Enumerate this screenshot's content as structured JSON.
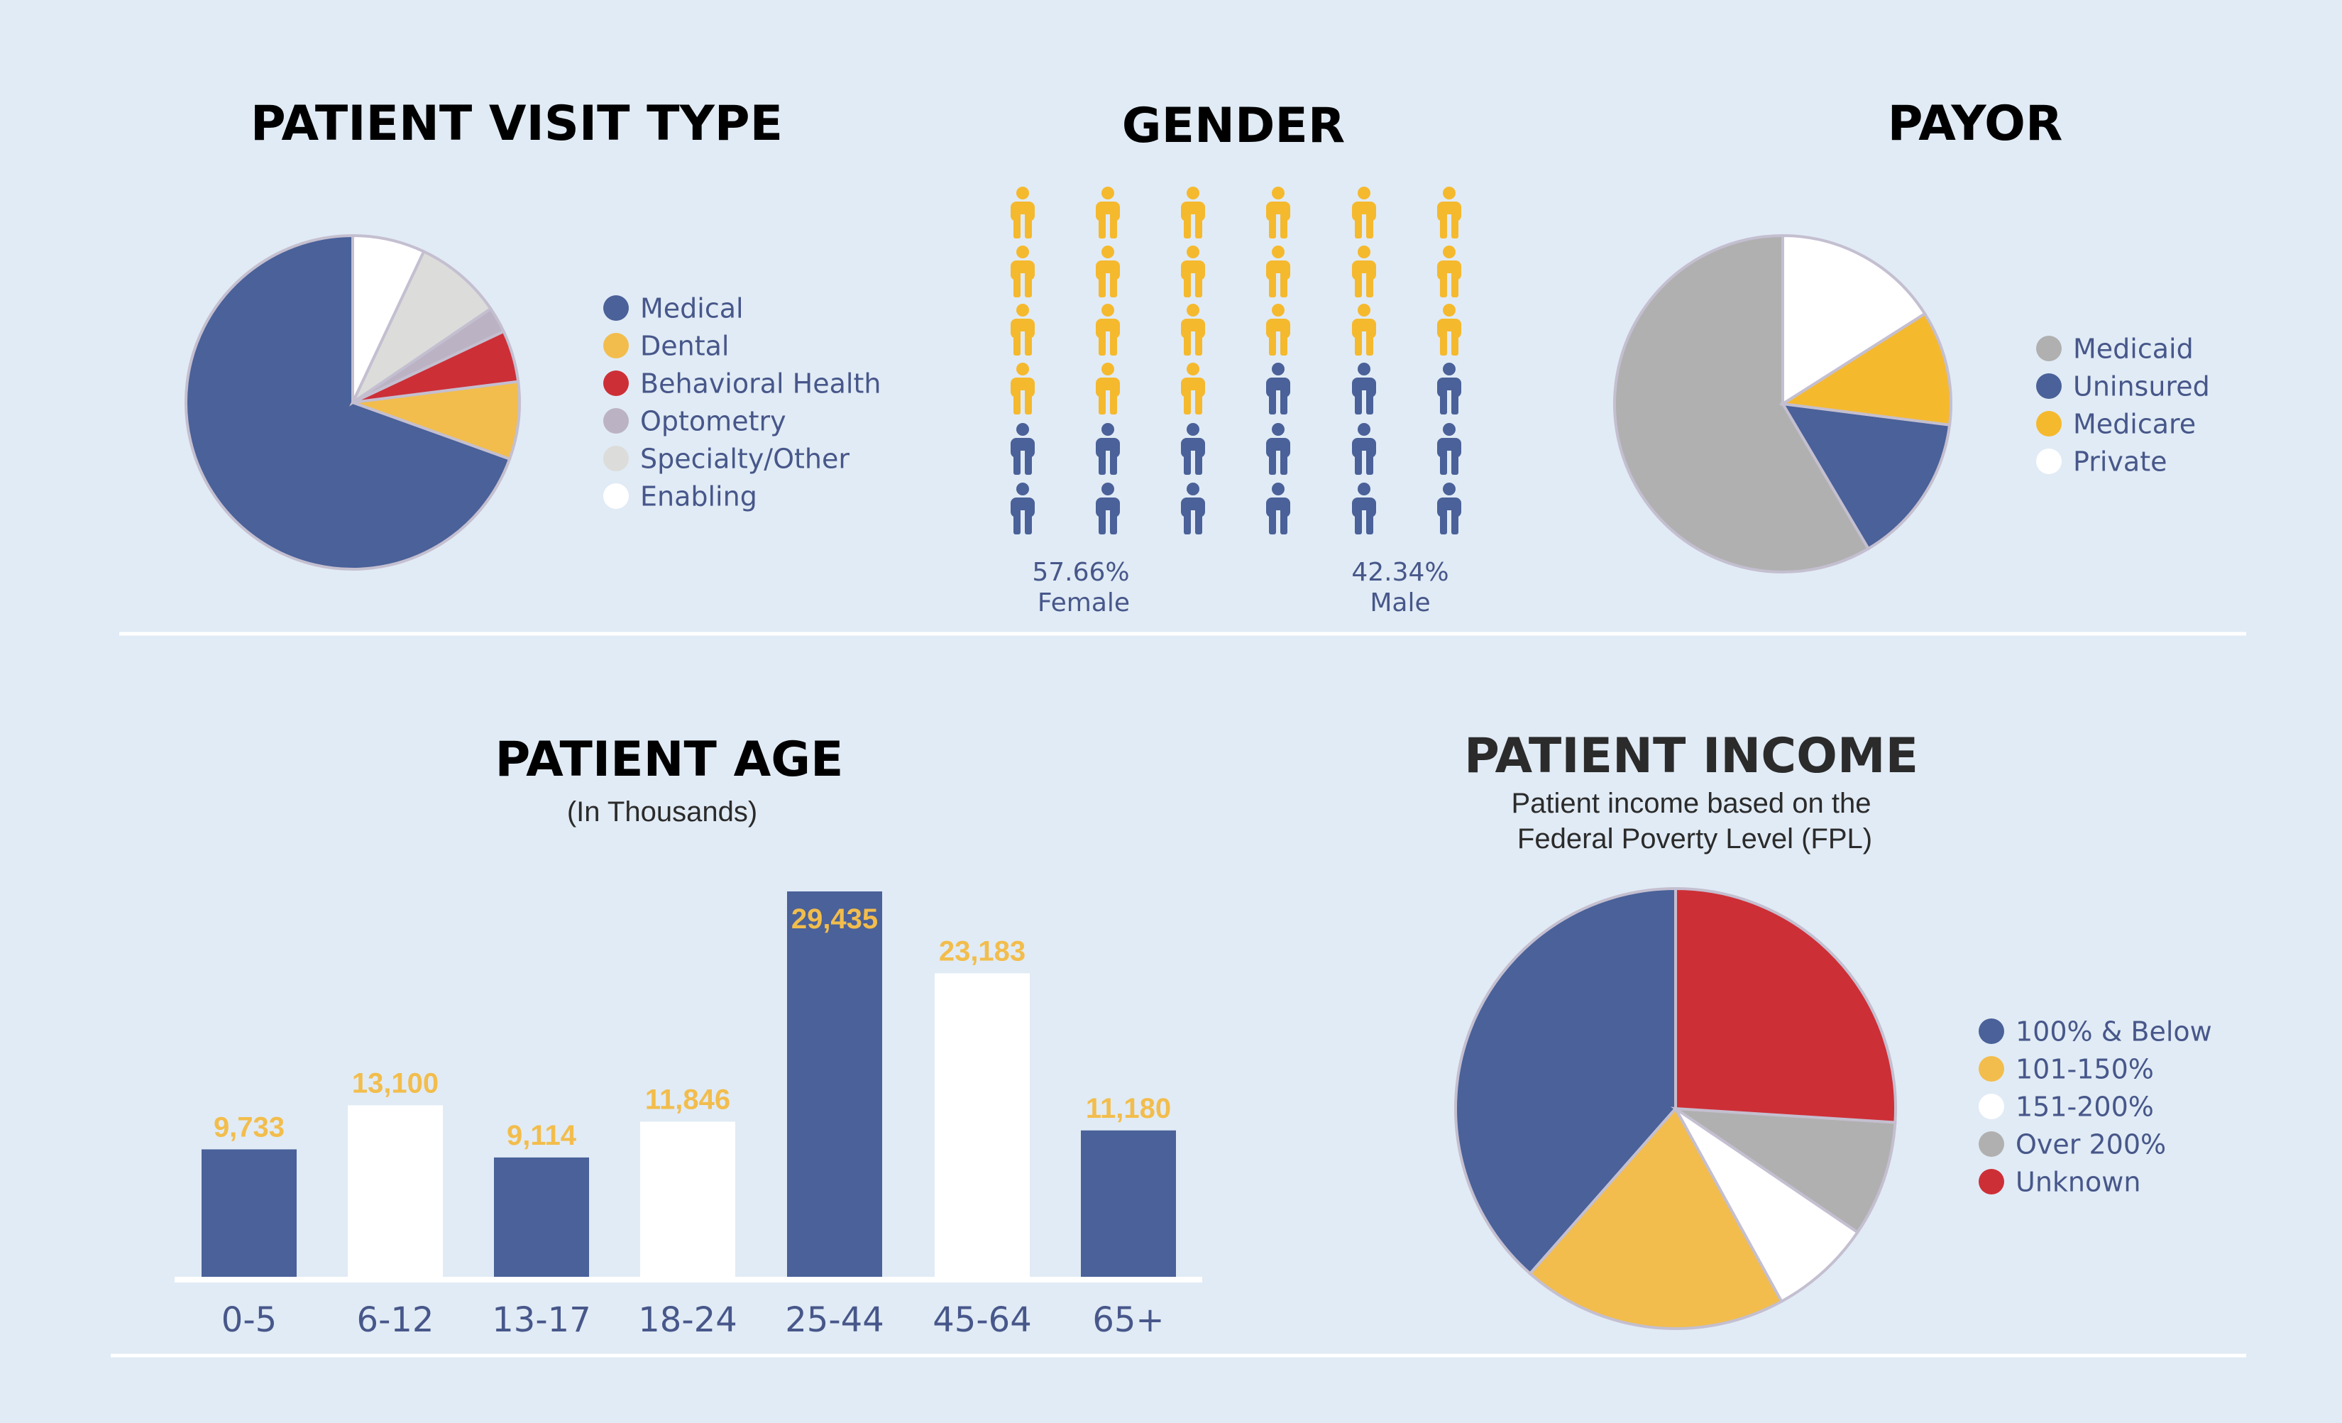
{
  "colors": {
    "background": "#e1ebf5",
    "blue": "#4a6199",
    "yellow": "#f2bd4c",
    "yellow_bright": "#f5b92e",
    "red": "#cd2f37",
    "mauve": "#bbb3c3",
    "light_gray": "#dcdcda",
    "gray": "#b0b0b0",
    "white": "#ffffff",
    "divider": "#ffffff"
  },
  "visit_type": {
    "title": "PATIENT VISIT TYPE"
  },
  "gender": {
    "title": "GENDER",
    "female_pct": "57.66%",
    "female_label": "Female",
    "male_pct": "42.34%",
    "male_label": "Male",
    "icon_grid": {
      "columns": 6,
      "rows": 6,
      "female_icons": 21,
      "male_icons": 15
    }
  },
  "payor": {
    "title": "PAYOR"
  },
  "age": {
    "title": "PATIENT AGE",
    "subtitle": "(In Thousands)"
  },
  "income": {
    "title": "PATIENT INCOME",
    "subtitle_line1": "Patient income based on the",
    "subtitle_line2": "Federal Poverty Level (FPL)"
  },
  "chart_data": [
    {
      "id": "visit_type",
      "type": "pie",
      "title": "PATIENT VISIT TYPE",
      "start_angle_deg": 0,
      "slices": [
        {
          "label": "Medical",
          "value": 69.5,
          "color": "#4a6199"
        },
        {
          "label": "Dental",
          "value": 7.5,
          "color": "#f2bd4c"
        },
        {
          "label": "Behavioral Health",
          "value": 5.0,
          "color": "#cd2f37"
        },
        {
          "label": "Optometry",
          "value": 2.5,
          "color": "#bbb3c3"
        },
        {
          "label": "Specialty/Other",
          "value": 8.5,
          "color": "#dcdcda"
        },
        {
          "label": "Enabling",
          "value": 7.0,
          "color": "#ffffff"
        }
      ]
    },
    {
      "id": "gender",
      "type": "pictograph",
      "title": "GENDER",
      "categories": [
        "Female",
        "Male"
      ],
      "values": [
        57.66,
        42.34
      ],
      "colors": [
        "#f5b92e",
        "#4a6199"
      ]
    },
    {
      "id": "payor",
      "type": "pie",
      "title": "PAYOR",
      "start_angle_deg": 0,
      "slices": [
        {
          "label": "Medicaid",
          "value": 58.5,
          "color": "#b0b0b0"
        },
        {
          "label": "Uninsured",
          "value": 14.5,
          "color": "#4a6199"
        },
        {
          "label": "Medicare",
          "value": 11.0,
          "color": "#f5b92e"
        },
        {
          "label": "Private",
          "value": 16.0,
          "color": "#ffffff"
        }
      ]
    },
    {
      "id": "age",
      "type": "bar",
      "title": "PATIENT AGE",
      "subtitle": "(In Thousands)",
      "categories": [
        "0-5",
        "6-12",
        "13-17",
        "18-24",
        "25-44",
        "45-64",
        "65+"
      ],
      "values": [
        9733,
        13100,
        9114,
        11846,
        29435,
        23183,
        11180
      ],
      "value_labels": [
        "9,733",
        "13,100",
        "9,114",
        "11,846",
        "29,435",
        "23,183",
        "11,180"
      ],
      "bar_colors": [
        "#4a6199",
        "#ffffff",
        "#4a6199",
        "#ffffff",
        "#4a6199",
        "#ffffff",
        "#4a6199"
      ],
      "ylim": [
        0,
        29435
      ]
    },
    {
      "id": "income",
      "type": "pie",
      "title": "PATIENT INCOME",
      "start_angle_deg": 0,
      "slices": [
        {
          "label": "100% & Below",
          "value": 38.5,
          "color": "#4a6199"
        },
        {
          "label": "101-150%",
          "value": 19.5,
          "color": "#f2bd4c"
        },
        {
          "label": "151-200%",
          "value": 7.5,
          "color": "#ffffff"
        },
        {
          "label": "Over 200%",
          "value": 8.5,
          "color": "#b0b0b0"
        },
        {
          "label": "Unknown",
          "value": 26.0,
          "color": "#cd2f37"
        }
      ]
    }
  ]
}
